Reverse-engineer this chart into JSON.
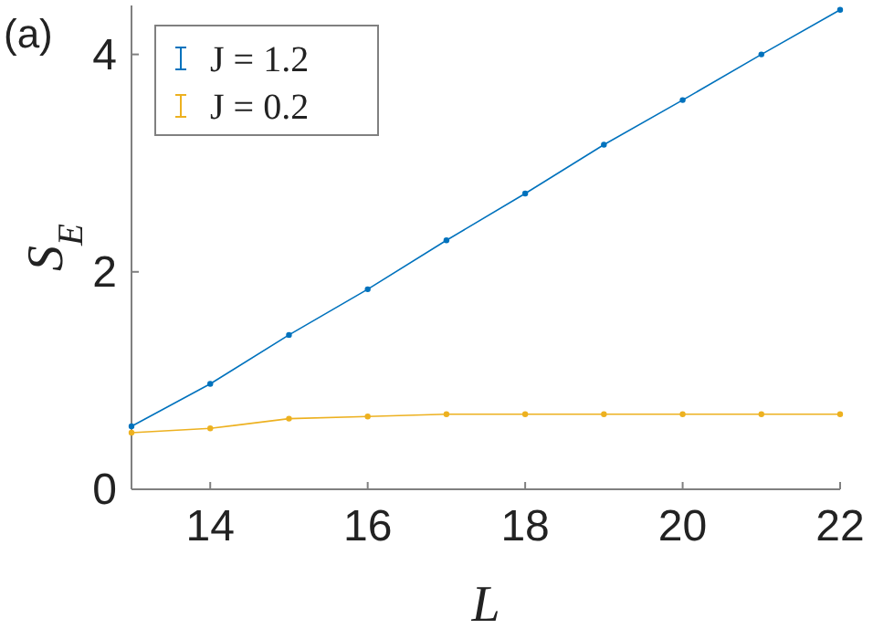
{
  "chart_data": {
    "type": "line",
    "xlabel": "L",
    "ylabel": "S$_{E}$",
    "annotations": [
      "(a)"
    ],
    "x": [
      13,
      14,
      15,
      16,
      17,
      18,
      19,
      20,
      21,
      22
    ],
    "series": [
      {
        "name": "J = 1.2",
        "color": "#0072bd",
        "values": [
          0.58,
          0.97,
          1.42,
          1.84,
          2.29,
          2.72,
          3.17,
          3.58,
          4.0,
          4.41
        ]
      },
      {
        "name": "J = 0.2",
        "color": "#edb120",
        "values": [
          0.52,
          0.56,
          0.65,
          0.67,
          0.69,
          0.69,
          0.69,
          0.69,
          0.69,
          0.69
        ]
      }
    ],
    "xlim": [
      13,
      22
    ],
    "xticks": [
      14,
      16,
      18,
      20,
      22
    ],
    "ylim": [
      0,
      4.45
    ],
    "yticks": [
      0,
      2,
      4
    ],
    "legend": "top left",
    "marker": "circle",
    "line_style": "solid",
    "grid": false
  }
}
